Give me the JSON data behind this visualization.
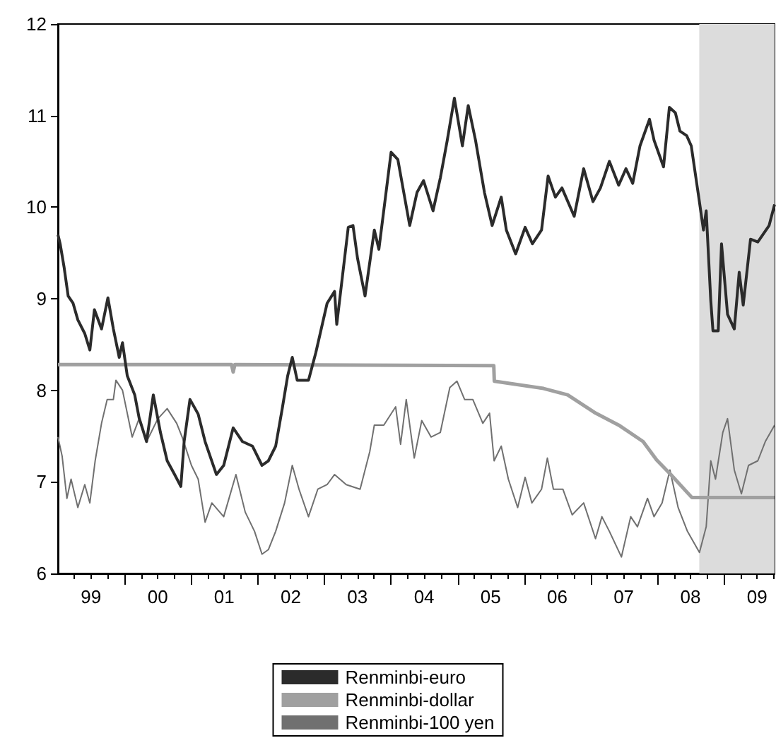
{
  "chart_data": {
    "type": "line",
    "xlim": [
      "1999-01-01",
      "2009-10-05"
    ],
    "ylim": [
      6,
      12
    ],
    "yticks": [
      6,
      7,
      8,
      9,
      10,
      11,
      12
    ],
    "xticks": [
      {
        "value": "1999-04-01",
        "label": null
      },
      {
        "value": "1999-07-01",
        "label": "99"
      },
      {
        "value": "1999-10-01",
        "label": null
      },
      {
        "value": "2000-01-01",
        "label": null
      },
      {
        "value": "2000-04-01",
        "label": null
      },
      {
        "value": "2000-07-01",
        "label": "00"
      },
      {
        "value": "2000-10-01",
        "label": null
      },
      {
        "value": "2001-01-01",
        "label": null
      },
      {
        "value": "2001-04-01",
        "label": null
      },
      {
        "value": "2001-07-01",
        "label": "01"
      },
      {
        "value": "2001-10-01",
        "label": null
      },
      {
        "value": "2002-01-01",
        "label": null
      },
      {
        "value": "2002-04-01",
        "label": null
      },
      {
        "value": "2002-07-01",
        "label": "02"
      },
      {
        "value": "2002-10-01",
        "label": null
      },
      {
        "value": "2003-01-01",
        "label": null
      },
      {
        "value": "2003-04-01",
        "label": null
      },
      {
        "value": "2003-07-01",
        "label": "03"
      },
      {
        "value": "2003-10-01",
        "label": null
      },
      {
        "value": "2004-01-01",
        "label": null
      },
      {
        "value": "2004-04-01",
        "label": null
      },
      {
        "value": "2004-07-01",
        "label": "04"
      },
      {
        "value": "2004-10-01",
        "label": null
      },
      {
        "value": "2005-01-01",
        "label": null
      },
      {
        "value": "2005-04-01",
        "label": null
      },
      {
        "value": "2005-07-01",
        "label": "05"
      },
      {
        "value": "2005-10-01",
        "label": null
      },
      {
        "value": "2006-01-01",
        "label": null
      },
      {
        "value": "2006-04-01",
        "label": null
      },
      {
        "value": "2006-07-01",
        "label": "06"
      },
      {
        "value": "2006-10-01",
        "label": null
      },
      {
        "value": "2007-01-01",
        "label": null
      },
      {
        "value": "2007-04-01",
        "label": null
      },
      {
        "value": "2007-07-01",
        "label": "07"
      },
      {
        "value": "2007-10-01",
        "label": null
      },
      {
        "value": "2008-01-01",
        "label": null
      },
      {
        "value": "2008-04-01",
        "label": null
      },
      {
        "value": "2008-07-01",
        "label": "08"
      },
      {
        "value": "2008-10-01",
        "label": null
      },
      {
        "value": "2009-01-01",
        "label": null
      },
      {
        "value": "2009-04-01",
        "label": null
      },
      {
        "value": "2009-07-01",
        "label": "09"
      },
      {
        "value": "2009-10-01",
        "label": null
      }
    ],
    "grid": false,
    "legend": "bottom",
    "marker": "none",
    "line_style": "solid",
    "bands": [
      {
        "axis": "x",
        "from": "2008-08-18",
        "to": "2009-10-05",
        "color": "#dcdcdc"
      }
    ],
    "series": [
      {
        "name": "Renminbi-euro",
        "color": "#2b2b2b",
        "x": [
          "1999-01-01",
          "1999-01-13",
          "1999-02-04",
          "1999-02-26",
          "1999-03-25",
          "1999-04-20",
          "1999-05-28",
          "1999-06-25",
          "1999-07-20",
          "1999-08-28",
          "1999-10-02",
          "1999-11-01",
          "1999-12-03",
          "1999-12-21",
          "2000-01-16",
          "2000-02-26",
          "2000-03-21",
          "2000-05-01",
          "2000-06-07",
          "2000-07-16",
          "2000-08-22",
          "2000-10-02",
          "2000-11-05",
          "2000-11-23",
          "2000-12-25",
          "2001-02-08",
          "2001-03-18",
          "2001-05-19",
          "2001-06-28",
          "2001-08-19",
          "2001-10-09",
          "2001-12-03",
          "2002-01-24",
          "2002-02-28",
          "2002-04-09",
          "2002-05-15",
          "2002-06-14",
          "2002-07-09",
          "2002-08-05",
          "2002-10-06",
          "2002-11-15",
          "2003-01-16",
          "2003-02-26",
          "2003-03-10",
          "2003-05-12",
          "2003-06-07",
          "2003-07-02",
          "2003-08-12",
          "2003-10-02",
          "2003-10-27",
          "2004-01-02",
          "2004-02-08",
          "2004-04-13",
          "2004-05-23",
          "2004-06-28",
          "2004-08-19",
          "2004-09-28",
          "2004-11-05",
          "2004-12-14",
          "2005-01-27",
          "2005-02-28",
          "2005-04-09",
          "2005-05-28",
          "2005-07-09",
          "2005-08-28",
          "2005-09-25",
          "2005-11-15",
          "2006-01-06",
          "2006-02-15",
          "2006-04-06",
          "2006-05-12",
          "2006-06-21",
          "2006-07-27",
          "2006-10-02",
          "2006-11-23",
          "2007-01-13",
          "2007-02-23",
          "2007-04-13",
          "2007-06-03",
          "2007-07-13",
          "2007-08-19",
          "2007-09-28",
          "2007-11-19",
          "2007-12-14",
          "2008-02-04",
          "2008-03-07",
          "2008-04-09",
          "2008-05-04",
          "2008-06-10",
          "2008-07-05",
          "2008-08-15",
          "2008-09-10",
          "2008-09-25",
          "2008-10-20",
          "2008-11-01",
          "2008-11-30",
          "2008-12-18",
          "2009-01-20",
          "2009-02-26",
          "2009-03-25",
          "2009-04-16",
          "2009-05-26",
          "2009-07-05",
          "2009-09-05",
          "2009-10-05"
        ],
        "values": [
          9.7,
          9.6,
          9.34,
          9.03,
          8.95,
          8.77,
          8.62,
          8.44,
          8.88,
          8.67,
          9.01,
          8.67,
          8.36,
          8.52,
          8.16,
          7.95,
          7.7,
          7.44,
          7.95,
          7.54,
          7.23,
          7.08,
          6.95,
          7.44,
          7.9,
          7.74,
          7.44,
          7.08,
          7.18,
          7.59,
          7.44,
          7.39,
          7.18,
          7.23,
          7.39,
          7.8,
          8.16,
          8.36,
          8.11,
          8.11,
          8.41,
          8.95,
          9.08,
          8.72,
          9.78,
          9.8,
          9.44,
          9.03,
          9.75,
          9.54,
          10.6,
          10.52,
          9.8,
          10.16,
          10.29,
          9.96,
          10.32,
          10.73,
          11.19,
          10.67,
          11.11,
          10.73,
          10.16,
          9.8,
          10.11,
          9.75,
          9.49,
          9.78,
          9.6,
          9.75,
          10.34,
          10.11,
          10.21,
          9.9,
          10.42,
          10.06,
          10.21,
          10.5,
          10.24,
          10.42,
          10.26,
          10.67,
          10.96,
          10.73,
          10.44,
          11.09,
          11.03,
          10.83,
          10.78,
          10.67,
          10.11,
          9.75,
          9.96,
          8.98,
          8.65,
          8.65,
          9.6,
          8.83,
          8.67,
          9.29,
          8.93,
          9.65,
          9.62,
          9.8,
          10.03
        ]
      },
      {
        "name": "Renminbi-dollar",
        "color": "#a0a0a0",
        "x": [
          "1999-01-01",
          "2001-08-10",
          "2001-08-19",
          "2001-08-28",
          "2005-07-18",
          "2005-07-21",
          "2006-04-17",
          "2006-08-27",
          "2007-01-28",
          "2007-06-03",
          "2007-10-15",
          "2007-12-28",
          "2008-03-15",
          "2008-07-08",
          "2009-10-05"
        ],
        "values": [
          8.28,
          8.28,
          8.2,
          8.28,
          8.27,
          8.1,
          8.02,
          7.95,
          7.75,
          7.62,
          7.44,
          7.24,
          7.08,
          6.83,
          6.83
        ]
      },
      {
        "name": "Renminbi-100 yen",
        "color": "#707070",
        "x": [
          "1999-01-01",
          "1999-01-24",
          "1999-02-19",
          "1999-03-14",
          "1999-04-20",
          "1999-05-28",
          "1999-06-25",
          "1999-07-24",
          "1999-08-28",
          "1999-09-28",
          "1999-11-01",
          "1999-11-15",
          "1999-12-21",
          "2000-02-12",
          "2000-03-21",
          "2000-05-01",
          "2000-07-02",
          "2000-08-22",
          "2000-10-13",
          "2000-11-12",
          "2001-01-02",
          "2001-02-08",
          "2001-03-18",
          "2001-04-24",
          "2001-06-28",
          "2001-09-03",
          "2001-10-24",
          "2001-12-14",
          "2002-01-24",
          "2002-02-28",
          "2002-04-09",
          "2002-05-28",
          "2002-07-09",
          "2002-08-15",
          "2002-10-06",
          "2002-11-26",
          "2003-01-16",
          "2003-02-26",
          "2003-05-01",
          "2003-07-16",
          "2003-09-07",
          "2003-10-02",
          "2003-11-23",
          "2004-01-27",
          "2004-02-23",
          "2004-03-25",
          "2004-05-08",
          "2004-06-18",
          "2004-08-08",
          "2004-09-28",
          "2004-11-19",
          "2004-12-28",
          "2005-02-08",
          "2005-03-25",
          "2005-05-19",
          "2005-06-25",
          "2005-07-20",
          "2005-08-28",
          "2005-10-06",
          "2005-11-26",
          "2006-01-06",
          "2006-02-12",
          "2006-04-06",
          "2006-05-08",
          "2006-06-10",
          "2006-08-01",
          "2006-09-21",
          "2006-11-23",
          "2007-01-27",
          "2007-03-03",
          "2007-04-13",
          "2007-06-18",
          "2007-08-08",
          "2007-09-14",
          "2007-11-08",
          "2007-12-14",
          "2008-01-27",
          "2008-03-10",
          "2008-04-24",
          "2008-06-14",
          "2008-08-19",
          "2008-09-25",
          "2008-10-20",
          "2008-11-15",
          "2008-12-25",
          "2009-01-20",
          "2009-02-26",
          "2009-04-06",
          "2009-05-15",
          "2009-07-05",
          "2009-08-15",
          "2009-10-05"
        ],
        "values": [
          7.49,
          7.28,
          6.82,
          7.03,
          6.72,
          6.97,
          6.77,
          7.23,
          7.64,
          7.9,
          7.9,
          8.11,
          8.0,
          7.49,
          7.69,
          7.44,
          7.69,
          7.8,
          7.64,
          7.49,
          7.18,
          7.03,
          6.56,
          6.77,
          6.62,
          7.08,
          6.67,
          6.46,
          6.21,
          6.26,
          6.46,
          6.77,
          7.18,
          6.92,
          6.62,
          6.92,
          6.97,
          7.08,
          6.97,
          6.92,
          7.33,
          7.62,
          7.62,
          7.82,
          7.41,
          7.9,
          7.26,
          7.67,
          7.49,
          7.54,
          8.03,
          8.1,
          7.9,
          7.9,
          7.64,
          7.75,
          7.23,
          7.39,
          7.03,
          6.72,
          7.05,
          6.77,
          6.92,
          7.26,
          6.92,
          6.92,
          6.64,
          6.77,
          6.38,
          6.62,
          6.46,
          6.18,
          6.62,
          6.51,
          6.82,
          6.62,
          6.77,
          7.13,
          6.72,
          6.46,
          6.23,
          6.51,
          7.23,
          7.03,
          7.54,
          7.69,
          7.13,
          6.87,
          7.18,
          7.23,
          7.44,
          7.62
        ]
      }
    ]
  }
}
